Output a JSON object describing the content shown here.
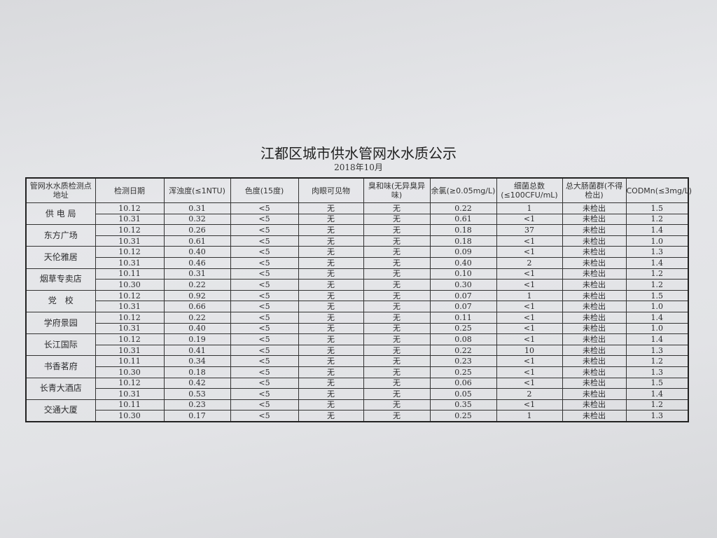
{
  "title": "江都区城市供水管网水水质公示",
  "subtitle": "2018年10月",
  "columns": [
    "管网水水质检测点地址",
    "检测日期",
    "浑浊度(≤1NTU)",
    "色度(15度)",
    "肉眼可见物",
    "臭和味(无异臭异味)",
    "余氯(≥0.05mg/L)",
    "细菌总数(≤100CFU/mL)",
    "总大肠菌群(不得检出)",
    "CODMn(≤3mg/L)"
  ],
  "sites": [
    {
      "name": "供 电 局",
      "rows": [
        [
          "10.12",
          "0.31",
          "<5",
          "无",
          "无",
          "0.22",
          "1",
          "未检出",
          "1.5"
        ],
        [
          "10.31",
          "0.32",
          "<5",
          "无",
          "无",
          "0.61",
          "<1",
          "未检出",
          "1.2"
        ]
      ]
    },
    {
      "name": "东方广场",
      "rows": [
        [
          "10.12",
          "0.26",
          "<5",
          "无",
          "无",
          "0.18",
          "37",
          "未检出",
          "1.4"
        ],
        [
          "10.31",
          "0.61",
          "<5",
          "无",
          "无",
          "0.18",
          "<1",
          "未检出",
          "1.0"
        ]
      ]
    },
    {
      "name": "天伦雅居",
      "rows": [
        [
          "10.12",
          "0.40",
          "<5",
          "无",
          "无",
          "0.09",
          "<1",
          "未检出",
          "1.3"
        ],
        [
          "10.31",
          "0.46",
          "<5",
          "无",
          "无",
          "0.40",
          "2",
          "未检出",
          "1.4"
        ]
      ]
    },
    {
      "name": "烟草专卖店",
      "rows": [
        [
          "10.11",
          "0.31",
          "<5",
          "无",
          "无",
          "0.10",
          "<1",
          "未检出",
          "1.2"
        ],
        [
          "10.30",
          "0.22",
          "<5",
          "无",
          "无",
          "0.30",
          "<1",
          "未检出",
          "1.2"
        ]
      ]
    },
    {
      "name": "党　校",
      "rows": [
        [
          "10.12",
          "0.92",
          "<5",
          "无",
          "无",
          "0.07",
          "1",
          "未检出",
          "1.5"
        ],
        [
          "10.31",
          "0.66",
          "<5",
          "无",
          "无",
          "0.07",
          "<1",
          "未检出",
          "1.0"
        ]
      ]
    },
    {
      "name": "学府景园",
      "rows": [
        [
          "10.12",
          "0.22",
          "<5",
          "无",
          "无",
          "0.11",
          "<1",
          "未检出",
          "1.4"
        ],
        [
          "10.31",
          "0.40",
          "<5",
          "无",
          "无",
          "0.25",
          "<1",
          "未检出",
          "1.0"
        ]
      ]
    },
    {
      "name": "长江国际",
      "rows": [
        [
          "10.12",
          "0.19",
          "<5",
          "无",
          "无",
          "0.08",
          "<1",
          "未检出",
          "1.4"
        ],
        [
          "10.31",
          "0.41",
          "<5",
          "无",
          "无",
          "0.22",
          "10",
          "未检出",
          "1.3"
        ]
      ]
    },
    {
      "name": "书香茗府",
      "rows": [
        [
          "10.11",
          "0.34",
          "<5",
          "无",
          "无",
          "0.23",
          "<1",
          "未检出",
          "1.2"
        ],
        [
          "10.30",
          "0.18",
          "<5",
          "无",
          "无",
          "0.25",
          "<1",
          "未检出",
          "1.3"
        ]
      ]
    },
    {
      "name": "长青大酒店",
      "rows": [
        [
          "10.12",
          "0.42",
          "<5",
          "无",
          "无",
          "0.06",
          "<1",
          "未检出",
          "1.5"
        ],
        [
          "10.31",
          "0.53",
          "<5",
          "无",
          "无",
          "0.05",
          "2",
          "未检出",
          "1.4"
        ]
      ]
    },
    {
      "name": "交通大厦",
      "rows": [
        [
          "10.11",
          "0.23",
          "<5",
          "无",
          "无",
          "0.35",
          "<1",
          "未检出",
          "1.2"
        ],
        [
          "10.30",
          "0.17",
          "<5",
          "无",
          "无",
          "0.25",
          "1",
          "未检出",
          "1.3"
        ]
      ]
    }
  ]
}
